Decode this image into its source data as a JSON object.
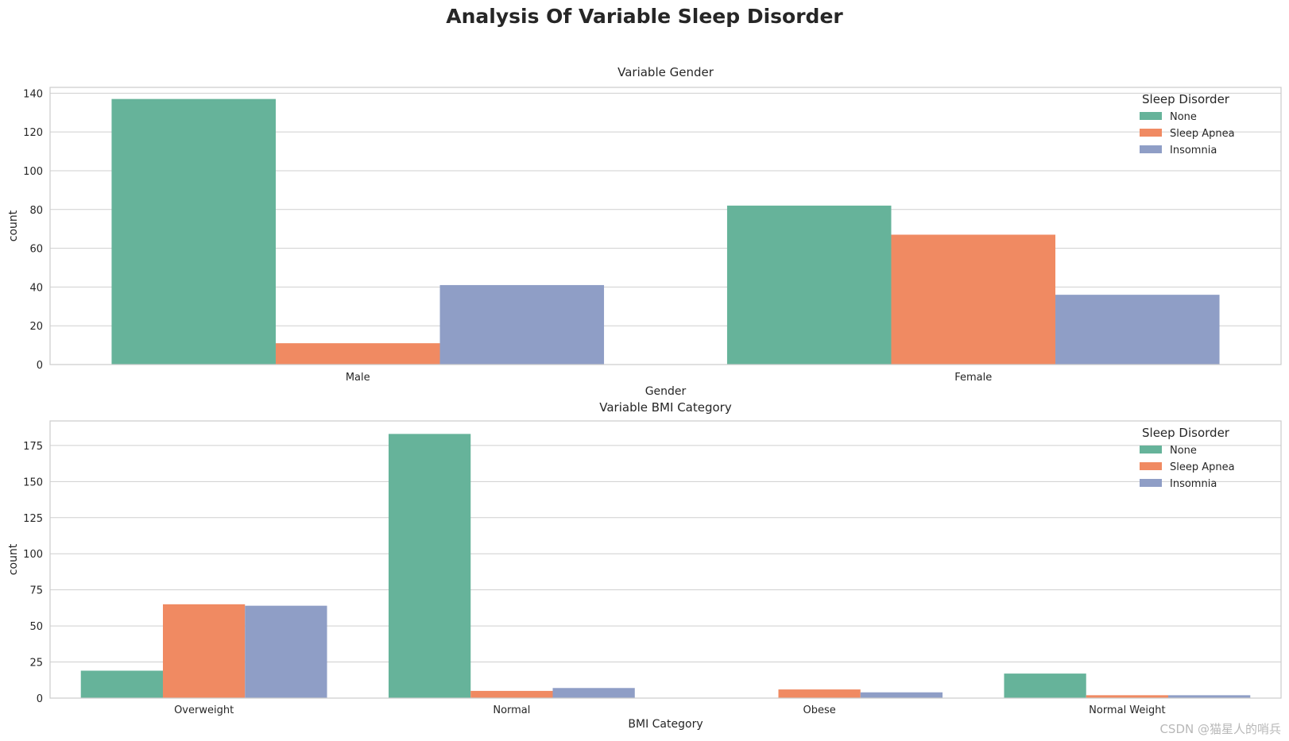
{
  "suptitle": "Analysis Of Variable Sleep Disorder",
  "watermark": "CSDN @猫星人的哨兵",
  "colors": {
    "None": "#66b39a",
    "Sleep Apnea": "#f08a62",
    "Insomnia": "#8f9ec6"
  },
  "chart_data": [
    {
      "type": "bar",
      "title": "Variable Gender",
      "xlabel": "Gender",
      "ylabel": "count",
      "categories": [
        "Male",
        "Female"
      ],
      "ylim": [
        0,
        143
      ],
      "yticks": [
        0,
        20,
        40,
        60,
        80,
        100,
        120,
        140
      ],
      "grid": true,
      "legend": {
        "title": "Sleep Disorder",
        "position": "top-right"
      },
      "series": [
        {
          "name": "None",
          "values": [
            137,
            82
          ]
        },
        {
          "name": "Sleep Apnea",
          "values": [
            11,
            67
          ]
        },
        {
          "name": "Insomnia",
          "values": [
            41,
            36
          ]
        }
      ]
    },
    {
      "type": "bar",
      "title": "Variable BMI Category",
      "xlabel": "BMI Category",
      "ylabel": "count",
      "categories": [
        "Overweight",
        "Normal",
        "Obese",
        "Normal Weight"
      ],
      "ylim": [
        0,
        192
      ],
      "yticks": [
        0,
        25,
        50,
        75,
        100,
        125,
        150,
        175
      ],
      "grid": true,
      "legend": {
        "title": "Sleep Disorder",
        "position": "top-right"
      },
      "series": [
        {
          "name": "None",
          "values": [
            19,
            183,
            0,
            17
          ]
        },
        {
          "name": "Sleep Apnea",
          "values": [
            65,
            5,
            6,
            2
          ]
        },
        {
          "name": "Insomnia",
          "values": [
            64,
            7,
            4,
            2
          ]
        }
      ]
    }
  ]
}
